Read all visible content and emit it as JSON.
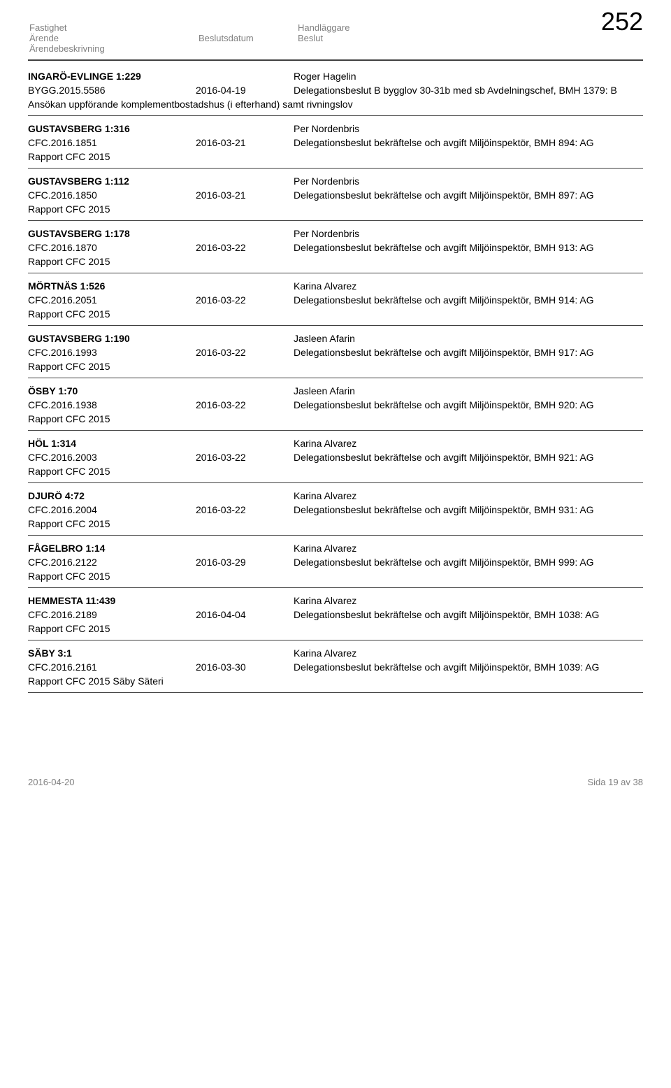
{
  "page_number": "252",
  "header": {
    "col1_line1": "Fastighet",
    "col1_line2": "Ärende",
    "col1_line3": "Ärendebeskrivning",
    "col2": "Beslutsdatum",
    "col3_line1": "Handläggare",
    "col3_line2": "Beslut"
  },
  "entries": [
    {
      "property": "INGARÖ-EVLINGE 1:229",
      "handler": "Roger Hagelin",
      "case": "BYGG.2015.5586",
      "date": "2016-04-19",
      "decision": "Delegationsbeslut B bygglov 30-31b med sb Avdelningschef, BMH 1379: B",
      "description": "Ansökan uppförande komplementbostadshus (i efterhand) samt rivningslov"
    },
    {
      "property": "GUSTAVSBERG 1:316",
      "handler": "Per Nordenbris",
      "case": "CFC.2016.1851",
      "date": "2016-03-21",
      "decision": "Delegationsbeslut bekräftelse och avgift Miljöinspektör, BMH 894: AG",
      "description": "Rapport CFC 2015"
    },
    {
      "property": "GUSTAVSBERG 1:112",
      "handler": "Per Nordenbris",
      "case": "CFC.2016.1850",
      "date": "2016-03-21",
      "decision": "Delegationsbeslut bekräftelse och avgift Miljöinspektör, BMH 897: AG",
      "description": "Rapport CFC 2015"
    },
    {
      "property": "GUSTAVSBERG 1:178",
      "handler": "Per Nordenbris",
      "case": "CFC.2016.1870",
      "date": "2016-03-22",
      "decision": "Delegationsbeslut bekräftelse och avgift Miljöinspektör, BMH 913: AG",
      "description": "Rapport CFC 2015"
    },
    {
      "property": "MÖRTNÄS 1:526",
      "handler": "Karina Alvarez",
      "case": "CFC.2016.2051",
      "date": "2016-03-22",
      "decision": "Delegationsbeslut bekräftelse och avgift Miljöinspektör, BMH 914: AG",
      "description": "Rapport CFC 2015"
    },
    {
      "property": "GUSTAVSBERG 1:190",
      "handler": "Jasleen Afarin",
      "case": "CFC.2016.1993",
      "date": "2016-03-22",
      "decision": "Delegationsbeslut bekräftelse och avgift Miljöinspektör, BMH 917: AG",
      "description": "Rapport CFC 2015"
    },
    {
      "property": "ÖSBY 1:70",
      "handler": "Jasleen Afarin",
      "case": "CFC.2016.1938",
      "date": "2016-03-22",
      "decision": "Delegationsbeslut bekräftelse och avgift Miljöinspektör, BMH 920: AG",
      "description": "Rapport CFC 2015"
    },
    {
      "property": "HÖL 1:314",
      "handler": "Karina Alvarez",
      "case": "CFC.2016.2003",
      "date": "2016-03-22",
      "decision": "Delegationsbeslut bekräftelse och avgift Miljöinspektör, BMH 921: AG",
      "description": "Rapport CFC 2015"
    },
    {
      "property": "DJURÖ 4:72",
      "handler": "Karina Alvarez",
      "case": "CFC.2016.2004",
      "date": "2016-03-22",
      "decision": "Delegationsbeslut bekräftelse och avgift Miljöinspektör, BMH 931: AG",
      "description": "Rapport CFC 2015"
    },
    {
      "property": "FÅGELBRO 1:14",
      "handler": "Karina Alvarez",
      "case": "CFC.2016.2122",
      "date": "2016-03-29",
      "decision": "Delegationsbeslut bekräftelse och avgift Miljöinspektör, BMH 999: AG",
      "description": "Rapport CFC 2015"
    },
    {
      "property": "HEMMESTA 11:439",
      "handler": "Karina Alvarez",
      "case": "CFC.2016.2189",
      "date": "2016-04-04",
      "decision": "Delegationsbeslut bekräftelse och avgift Miljöinspektör, BMH 1038: AG",
      "description": "Rapport CFC 2015"
    },
    {
      "property": "SÄBY 3:1",
      "handler": "Karina Alvarez",
      "case": "CFC.2016.2161",
      "date": "2016-03-30",
      "decision": "Delegationsbeslut bekräftelse och avgift Miljöinspektör, BMH 1039: AG",
      "description": "Rapport CFC 2015 Säby Säteri"
    }
  ],
  "footer": {
    "date": "2016-04-20",
    "page": "Sida 19 av 38"
  }
}
